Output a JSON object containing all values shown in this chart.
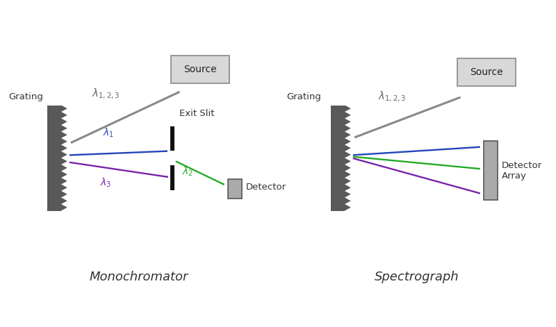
{
  "bg_color": "#ffffff",
  "grating_color": "#595959",
  "source_face_color": "#d8d8d8",
  "source_edge_color": "#888888",
  "detector_color": "#aaaaaa",
  "slit_color": "#111111",
  "arrow_gray": "#888888",
  "lambda1_color": "#2244bb",
  "lambda2_color": "#22aa22",
  "lambda3_color": "#7722aa",
  "mono_label": "Monochromator",
  "spectro_label": "Spectrograph",
  "grating_label": "Grating",
  "source_label": "Source",
  "exit_slit_label": "Exit Slit",
  "detector_label": "Detector",
  "detector_array_label": "Detector\nArray",
  "lambda_in_label": "$\\lambda_{1,2,3}$",
  "lambda1_label": "$\\lambda_1$",
  "lambda2_label": "$\\lambda_2$",
  "lambda3_label": "$\\lambda_3$"
}
